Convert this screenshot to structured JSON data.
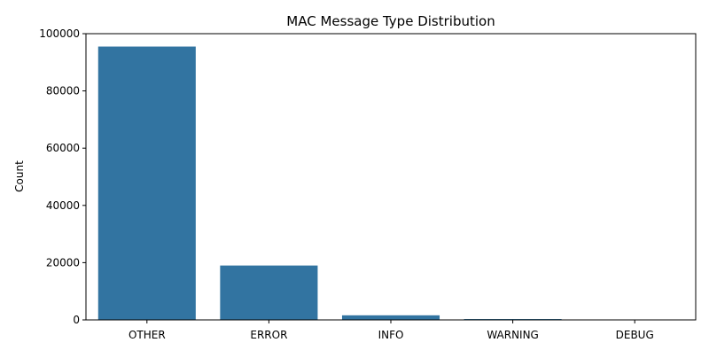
{
  "chart_data": {
    "type": "bar",
    "title": "MAC Message Type Distribution",
    "xlabel": "",
    "ylabel": "Count",
    "categories": [
      "OTHER",
      "ERROR",
      "INFO",
      "WARNING",
      "DEBUG"
    ],
    "values": [
      95500,
      19000,
      1600,
      300,
      50
    ],
    "ylim": [
      0,
      100000
    ],
    "yticks": [
      0,
      20000,
      40000,
      60000,
      80000,
      100000
    ],
    "grid": false,
    "legend": "none",
    "bar_color": "#3274a1"
  }
}
